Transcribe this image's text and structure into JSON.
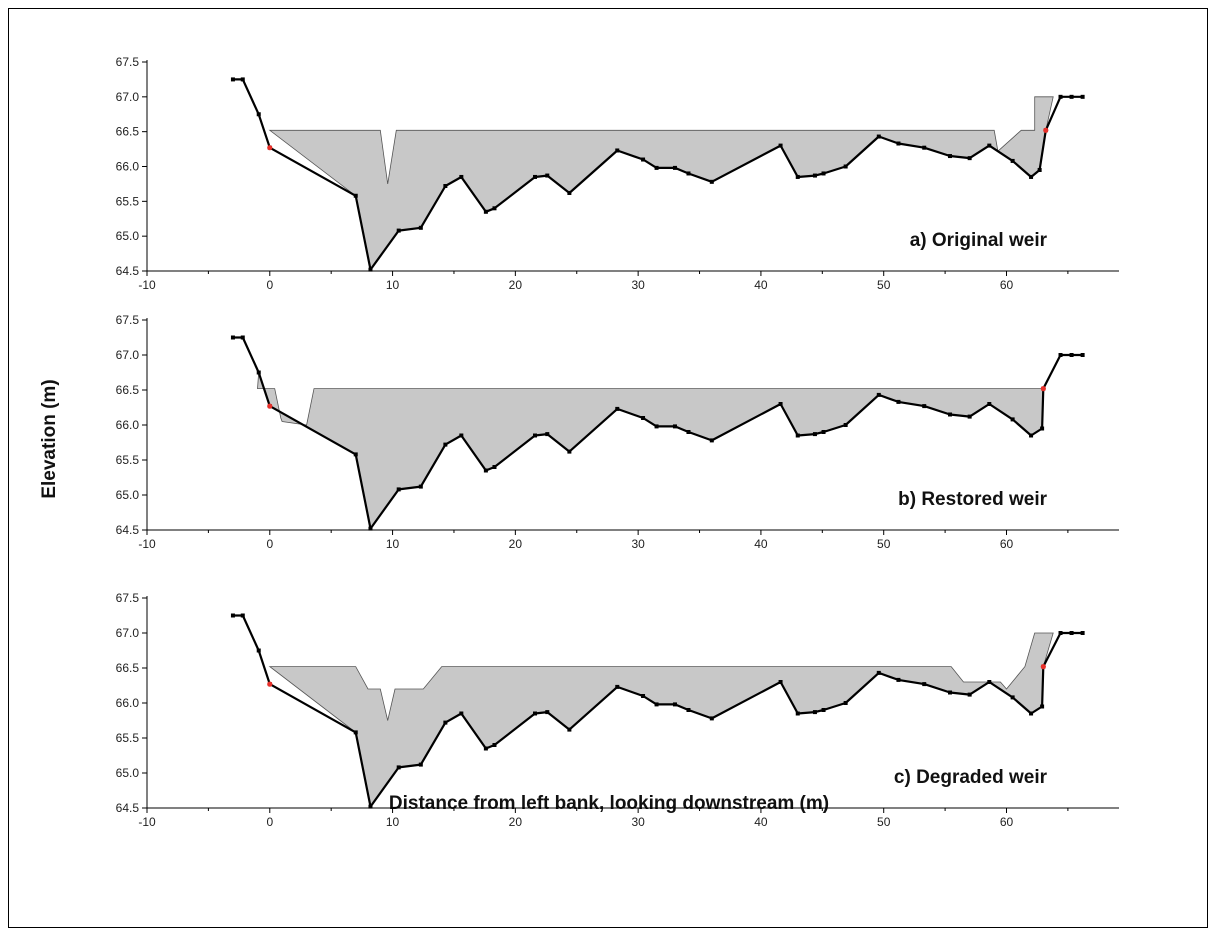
{
  "figure": {
    "ylabel": "Elevation (m)",
    "xlabel": "Distance from left bank, looking downstream (m)"
  },
  "chart_data": [
    {
      "type": "area",
      "panel_label": "a) Original weir",
      "xlim": [
        -10,
        69
      ],
      "ylim": [
        64.5,
        67.5
      ],
      "x_ticks": [
        -10,
        0,
        10,
        20,
        30,
        40,
        50,
        60
      ],
      "y_ticks": [
        "64.5",
        "65.0",
        "65.5",
        "66.0",
        "66.5",
        "67.0",
        "67.5"
      ],
      "colors": {
        "fill": "#c8c8c8",
        "bed": "#000000",
        "edge_marker": "#e8302a"
      },
      "water_surface": [
        [
          0,
          66.52
        ],
        [
          9,
          66.52
        ],
        [
          9.6,
          65.75
        ],
        [
          10.3,
          66.52
        ],
        [
          59,
          66.52
        ],
        [
          59.3,
          66.22
        ],
        [
          61.2,
          66.52
        ],
        [
          62.3,
          66.52
        ],
        [
          62.3,
          67.0
        ],
        [
          63.8,
          67.0
        ]
      ],
      "bed_profile": [
        [
          -3,
          67.25
        ],
        [
          -2.2,
          67.25
        ],
        [
          -0.9,
          66.75
        ],
        [
          0,
          66.27
        ],
        [
          7,
          65.58
        ],
        [
          8.2,
          64.52
        ],
        [
          10.5,
          65.08
        ],
        [
          12.3,
          65.12
        ],
        [
          14.3,
          65.72
        ],
        [
          15.6,
          65.85
        ],
        [
          17.6,
          65.35
        ],
        [
          18.3,
          65.4
        ],
        [
          21.6,
          65.85
        ],
        [
          22.6,
          65.87
        ],
        [
          24.4,
          65.62
        ],
        [
          28.3,
          66.23
        ],
        [
          30.4,
          66.1
        ],
        [
          31.5,
          65.98
        ],
        [
          33,
          65.98
        ],
        [
          34.1,
          65.9
        ],
        [
          36,
          65.78
        ],
        [
          41.6,
          66.3
        ],
        [
          43,
          65.85
        ],
        [
          44.4,
          65.87
        ],
        [
          45.1,
          65.9
        ],
        [
          46.9,
          66.0
        ],
        [
          49.6,
          66.43
        ],
        [
          51.2,
          66.33
        ],
        [
          53.3,
          66.27
        ],
        [
          55.4,
          66.15
        ],
        [
          57,
          66.12
        ],
        [
          58.6,
          66.3
        ],
        [
          60.5,
          66.08
        ],
        [
          62,
          65.85
        ],
        [
          62.7,
          65.95
        ],
        [
          63.2,
          66.52
        ],
        [
          64.4,
          67.0
        ],
        [
          65.3,
          67.0
        ],
        [
          66.2,
          67.0
        ]
      ],
      "edge_points": [
        [
          0,
          66.27
        ],
        [
          63.2,
          66.52
        ]
      ]
    },
    {
      "type": "area",
      "panel_label": "b) Restored weir",
      "xlim": [
        -10,
        69
      ],
      "ylim": [
        64.5,
        67.5
      ],
      "x_ticks": [
        -10,
        0,
        10,
        20,
        30,
        40,
        50,
        60
      ],
      "y_ticks": [
        "64.5",
        "65.0",
        "65.5",
        "66.0",
        "66.5",
        "67.0",
        "67.5"
      ],
      "colors": {
        "fill": "#c8c8c8",
        "bed": "#000000",
        "edge_marker": "#e8302a"
      },
      "water_surface": [
        [
          -1,
          66.52
        ],
        [
          0.4,
          66.52
        ],
        [
          0.9,
          66.1
        ],
        [
          1,
          66.05
        ],
        [
          3,
          66.0
        ],
        [
          3.6,
          66.52
        ],
        [
          63,
          66.52
        ]
      ],
      "bed_profile": [
        [
          -3,
          67.25
        ],
        [
          -2.2,
          67.25
        ],
        [
          -0.9,
          66.75
        ],
        [
          0,
          66.27
        ],
        [
          7,
          65.58
        ],
        [
          8.2,
          64.52
        ],
        [
          10.5,
          65.08
        ],
        [
          12.3,
          65.12
        ],
        [
          14.3,
          65.72
        ],
        [
          15.6,
          65.85
        ],
        [
          17.6,
          65.35
        ],
        [
          18.3,
          65.4
        ],
        [
          21.6,
          65.85
        ],
        [
          22.6,
          65.87
        ],
        [
          24.4,
          65.62
        ],
        [
          28.3,
          66.23
        ],
        [
          30.4,
          66.1
        ],
        [
          31.5,
          65.98
        ],
        [
          33,
          65.98
        ],
        [
          34.1,
          65.9
        ],
        [
          36,
          65.78
        ],
        [
          41.6,
          66.3
        ],
        [
          43,
          65.85
        ],
        [
          44.4,
          65.87
        ],
        [
          45.1,
          65.9
        ],
        [
          46.9,
          66.0
        ],
        [
          49.6,
          66.43
        ],
        [
          51.2,
          66.33
        ],
        [
          53.3,
          66.27
        ],
        [
          55.4,
          66.15
        ],
        [
          57,
          66.12
        ],
        [
          58.6,
          66.3
        ],
        [
          60.5,
          66.08
        ],
        [
          62,
          65.85
        ],
        [
          62.9,
          65.95
        ],
        [
          63,
          66.52
        ],
        [
          64.4,
          67.0
        ],
        [
          65.3,
          67.0
        ],
        [
          66.2,
          67.0
        ]
      ],
      "edge_points": [
        [
          0,
          66.27
        ],
        [
          63,
          66.52
        ]
      ]
    },
    {
      "type": "area",
      "panel_label": "c) Degraded weir",
      "xlim": [
        -10,
        69
      ],
      "ylim": [
        64.5,
        67.5
      ],
      "x_ticks": [
        -10,
        0,
        10,
        20,
        30,
        40,
        50,
        60
      ],
      "y_ticks": [
        "64.5",
        "65.0",
        "65.5",
        "66.0",
        "66.5",
        "67.0",
        "67.5"
      ],
      "colors": {
        "fill": "#c8c8c8",
        "bed": "#000000",
        "edge_marker": "#e8302a"
      },
      "water_surface": [
        [
          0,
          66.52
        ],
        [
          7,
          66.52
        ],
        [
          8,
          66.2
        ],
        [
          9,
          66.2
        ],
        [
          9.6,
          65.75
        ],
        [
          10.2,
          66.2
        ],
        [
          12.5,
          66.2
        ],
        [
          14,
          66.52
        ],
        [
          55.5,
          66.52
        ],
        [
          56.5,
          66.3
        ],
        [
          58,
          66.3
        ],
        [
          59.5,
          66.3
        ],
        [
          60,
          66.2
        ],
        [
          61.5,
          66.52
        ],
        [
          62.3,
          67.0
        ],
        [
          63.8,
          67.0
        ]
      ],
      "bed_profile": [
        [
          -3,
          67.25
        ],
        [
          -2.2,
          67.25
        ],
        [
          -0.9,
          66.75
        ],
        [
          0,
          66.27
        ],
        [
          7,
          65.58
        ],
        [
          8.2,
          64.52
        ],
        [
          10.5,
          65.08
        ],
        [
          12.3,
          65.12
        ],
        [
          14.3,
          65.72
        ],
        [
          15.6,
          65.85
        ],
        [
          17.6,
          65.35
        ],
        [
          18.3,
          65.4
        ],
        [
          21.6,
          65.85
        ],
        [
          22.6,
          65.87
        ],
        [
          24.4,
          65.62
        ],
        [
          28.3,
          66.23
        ],
        [
          30.4,
          66.1
        ],
        [
          31.5,
          65.98
        ],
        [
          33,
          65.98
        ],
        [
          34.1,
          65.9
        ],
        [
          36,
          65.78
        ],
        [
          41.6,
          66.3
        ],
        [
          43,
          65.85
        ],
        [
          44.4,
          65.87
        ],
        [
          45.1,
          65.9
        ],
        [
          46.9,
          66.0
        ],
        [
          49.6,
          66.43
        ],
        [
          51.2,
          66.33
        ],
        [
          53.3,
          66.27
        ],
        [
          55.4,
          66.15
        ],
        [
          57,
          66.12
        ],
        [
          58.6,
          66.3
        ],
        [
          60.5,
          66.08
        ],
        [
          62,
          65.85
        ],
        [
          62.9,
          65.95
        ],
        [
          63,
          66.52
        ],
        [
          64.4,
          67.0
        ],
        [
          65.3,
          67.0
        ],
        [
          66.2,
          67.0
        ]
      ],
      "edge_points": [
        [
          0,
          66.27
        ],
        [
          63,
          66.52
        ]
      ]
    }
  ]
}
